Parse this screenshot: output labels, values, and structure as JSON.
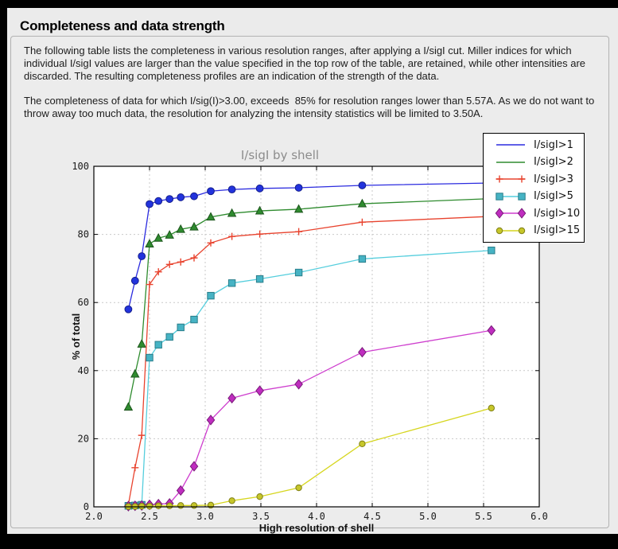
{
  "frame": {
    "bg": "#000000"
  },
  "panel": {
    "bg": "#ebebeb",
    "box_border": "#b2b2b2"
  },
  "header": {
    "title": "Completeness and data strength"
  },
  "paragraphs": {
    "p1": [
      "The following table lists the completeness in various resolution ranges, after applying a I/sigI cut. Miller indices for which",
      "individual I/sigI values are larger than the value specified in the top row of the table, are retained, while other intensities are",
      "discarded. The resulting completeness profiles are an indication of the strength of the data."
    ],
    "p2": [
      "The completeness of data for which I/sig(I)>3.00, exceeds  85% for resolution ranges lower than 5.57A. As we do not want to",
      "throw away too much data, the resolution for analyzing the intensity statistics will be limited to 3.50A."
    ]
  },
  "chart_data": {
    "type": "line",
    "title": "I/sigI by shell",
    "xlabel": "High resolution of shell",
    "ylabel": "% of total",
    "xlim": [
      2.0,
      6.0
    ],
    "ylim": [
      0,
      100
    ],
    "grid": true,
    "legend_position": "upper right",
    "plot_bg": "#ffffff",
    "grid_color": "#c9c9c9",
    "axis_color": "#000000",
    "title_color": "#8c8c8c",
    "x_ticks": [
      2.0,
      2.5,
      3.0,
      3.5,
      4.0,
      4.5,
      5.0,
      5.5,
      6.0
    ],
    "x_tick_labels": [
      "2.0",
      "2.5",
      "3.0",
      "3.5",
      "4.0",
      "4.5",
      "5.0",
      "5.5",
      "6.0"
    ],
    "y_ticks": [
      0,
      20,
      40,
      60,
      80,
      100
    ],
    "y_tick_labels": [
      "0",
      "20",
      "40",
      "60",
      "80",
      "100"
    ],
    "x": [
      2.31,
      2.37,
      2.43,
      2.5,
      2.58,
      2.68,
      2.78,
      2.9,
      3.05,
      3.24,
      3.49,
      3.84,
      4.41,
      5.57
    ],
    "series": [
      {
        "name": "I/sigI>1",
        "marker": "circle",
        "legend_markers": false,
        "line_color": "#2b2bdf",
        "marker_fill": "#2233dd",
        "marker_edge": "#141e8c",
        "values": [
          58.0,
          66.4,
          73.6,
          88.9,
          89.8,
          90.4,
          90.9,
          91.2,
          92.7,
          93.2,
          93.5,
          93.7,
          94.4,
          95.1
        ]
      },
      {
        "name": "I/sigI>2",
        "marker": "triangle",
        "legend_markers": false,
        "line_color": "#2e8b2e",
        "marker_fill": "#2f8b2f",
        "marker_edge": "#1c551c",
        "values": [
          29.3,
          39.0,
          47.8,
          77.2,
          78.9,
          79.8,
          81.5,
          82.2,
          85.1,
          86.2,
          86.9,
          87.4,
          89.0,
          90.5
        ]
      },
      {
        "name": "I/sigI>3",
        "marker": "plus",
        "legend_markers": true,
        "line_color": "#e8432e",
        "marker_fill": "#e8432e",
        "marker_edge": "#e8432e",
        "values": [
          0.6,
          11.5,
          21.0,
          65.3,
          69.0,
          71.2,
          71.9,
          73.1,
          77.5,
          79.4,
          80.1,
          80.8,
          83.6,
          85.3
        ]
      },
      {
        "name": "I/sigI>5",
        "marker": "square",
        "legend_markers": true,
        "line_color": "#55cedd",
        "marker_fill": "#46b3c4",
        "marker_edge": "#297d8a",
        "values": [
          0.3,
          0.4,
          0.6,
          43.8,
          47.6,
          49.9,
          52.7,
          55.0,
          62.0,
          65.7,
          66.9,
          68.8,
          72.8,
          75.3
        ]
      },
      {
        "name": "I/sigI>10",
        "marker": "diamond",
        "legend_markers": true,
        "line_color": "#ce3ece",
        "marker_fill": "#bf2dbf",
        "marker_edge": "#791b79",
        "values": [
          0.2,
          0.3,
          0.4,
          0.6,
          0.8,
          1.0,
          4.8,
          11.9,
          25.5,
          31.9,
          34.1,
          36.0,
          45.4,
          51.8
        ]
      },
      {
        "name": "I/sigI>15",
        "marker": "circle-small",
        "legend_markers": true,
        "line_color": "#d6d61f",
        "marker_fill": "#c6c62a",
        "marker_edge": "#7f7f15",
        "values": [
          0.1,
          0.1,
          0.2,
          0.2,
          0.3,
          0.3,
          0.4,
          0.4,
          0.5,
          1.8,
          3.0,
          5.6,
          18.5,
          29.0
        ]
      }
    ]
  }
}
